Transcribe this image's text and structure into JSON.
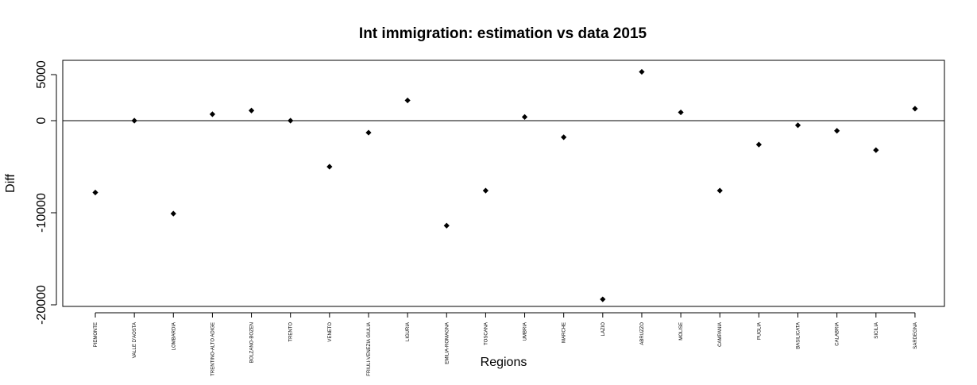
{
  "chart_data": {
    "type": "scatter",
    "title": "Int immigration: estimation vs data 2015",
    "xlabel": "Regions",
    "ylabel": "Diff",
    "categories": [
      "PIEMONTE",
      "VALLE D'AOSTA",
      "LOMBARDIA",
      "TRENTINO-ALTO ADIGE",
      "BOLZANO-BOZEN",
      "TRENTO",
      "VENETO",
      "FRIULI-VENEZIA GIULIA",
      "LIGURIA",
      "EMILIA-ROMAGNA",
      "TOSCANA",
      "UMBRIA",
      "MARCHE",
      "LAZIO",
      "ABRUZZO",
      "MOLISE",
      "CAMPANIA",
      "PUGLIA",
      "BASILICATA",
      "CALABRIA",
      "SICILIA",
      "SARDEGNA"
    ],
    "values": [
      -7800,
      0,
      -10100,
      700,
      1100,
      0,
      -5000,
      -1300,
      2200,
      -11400,
      -7600,
      400,
      -1800,
      -19400,
      5300,
      900,
      -7600,
      -2600,
      -500,
      -1100,
      -3200,
      1300
    ],
    "yticks": [
      5000,
      0,
      -10000,
      -20000
    ],
    "ytick_labels": [
      "5000",
      "0",
      "-10000",
      "-20000"
    ],
    "ylim": [
      -20200,
      6700
    ],
    "reference_line": 0,
    "grid": false,
    "point_color": "#000000"
  }
}
